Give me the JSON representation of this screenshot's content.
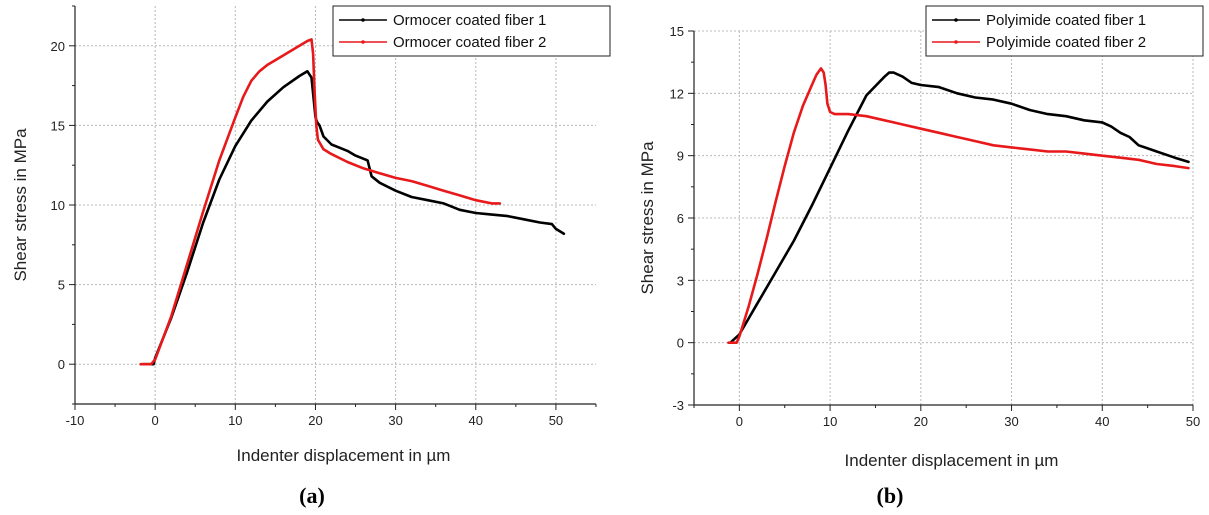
{
  "chart_data": [
    {
      "type": "line",
      "panel_label": "(a)",
      "xlabel": "Indenter displacement in µm",
      "ylabel": "Shear stress in MPa",
      "xlim": [
        -10,
        55
      ],
      "ylim": [
        -2.5,
        22.5
      ],
      "xticks": [
        -10,
        0,
        10,
        20,
        30,
        40,
        50
      ],
      "yticks": [
        0,
        5,
        10,
        15,
        20
      ],
      "grid": true,
      "legend_position": "top-right",
      "series": [
        {
          "name": "Ormocer coated fiber 1",
          "color": "#000000",
          "x": [
            -1.5,
            -0.2,
            0,
            2,
            4,
            6,
            8,
            10,
            12,
            14,
            16,
            18,
            19,
            19.5,
            19.8,
            20.0,
            20.2,
            20.5,
            21,
            22,
            23,
            24,
            25,
            26,
            26.5,
            27,
            28,
            30,
            32,
            34,
            36,
            38,
            40,
            42,
            44,
            46,
            48,
            49.5,
            50,
            51
          ],
          "y": [
            0,
            0,
            0.4,
            2.9,
            5.8,
            8.9,
            11.6,
            13.7,
            15.3,
            16.5,
            17.4,
            18.1,
            18.4,
            18.0,
            16.5,
            15.5,
            15.2,
            15.0,
            14.3,
            13.8,
            13.6,
            13.4,
            13.1,
            12.9,
            12.8,
            11.8,
            11.4,
            10.9,
            10.5,
            10.3,
            10.1,
            9.7,
            9.5,
            9.4,
            9.3,
            9.1,
            8.9,
            8.8,
            8.5,
            8.2
          ]
        },
        {
          "name": "Ormocer coated fiber 2",
          "color": "#e8191b",
          "x": [
            -1.8,
            -0.5,
            0,
            2,
            4,
            6,
            8,
            10,
            11,
            12,
            13,
            14,
            16,
            18,
            19,
            19.5,
            19.7,
            19.9,
            20.1,
            20.3,
            21,
            22,
            24,
            26,
            28,
            30,
            32,
            34,
            36,
            38,
            40,
            41,
            42,
            43
          ],
          "y": [
            0,
            0,
            0.3,
            3.0,
            6.3,
            9.6,
            12.8,
            15.5,
            16.8,
            17.8,
            18.4,
            18.8,
            19.4,
            20.0,
            20.3,
            20.4,
            19.5,
            17.0,
            15.0,
            14.1,
            13.5,
            13.2,
            12.7,
            12.3,
            12.0,
            11.7,
            11.5,
            11.2,
            10.9,
            10.6,
            10.3,
            10.2,
            10.1,
            10.1
          ]
        }
      ]
    },
    {
      "type": "line",
      "panel_label": "(b)",
      "xlabel": "Indenter displacement in µm",
      "ylabel": "Shear stress in MPa",
      "xlim": [
        -5,
        50
      ],
      "ylim": [
        -3,
        15
      ],
      "xticks": [
        0,
        10,
        20,
        30,
        40,
        50
      ],
      "yticks": [
        -3,
        0,
        3,
        6,
        9,
        12,
        15
      ],
      "grid": true,
      "legend_position": "top-right",
      "series": [
        {
          "name": "Polyimide coated fiber 1",
          "color": "#000000",
          "x": [
            -1,
            0,
            2,
            4,
            6,
            8,
            10,
            12,
            14,
            16,
            16.5,
            17,
            18,
            19,
            20,
            22,
            24,
            26,
            28,
            30,
            32,
            34,
            36,
            38,
            40,
            41,
            42,
            43,
            44,
            46,
            48,
            49.5
          ],
          "y": [
            0,
            0.4,
            1.9,
            3.4,
            4.9,
            6.6,
            8.4,
            10.2,
            11.9,
            12.8,
            13.0,
            13.0,
            12.8,
            12.5,
            12.4,
            12.3,
            12.0,
            11.8,
            11.7,
            11.5,
            11.2,
            11.0,
            10.9,
            10.7,
            10.6,
            10.4,
            10.1,
            9.9,
            9.5,
            9.2,
            8.9,
            8.7
          ]
        },
        {
          "name": "Polyimide coated fiber 2",
          "color": "#e8191b",
          "x": [
            -1.2,
            -0.3,
            0,
            1,
            2,
            3,
            4,
            5,
            6,
            7,
            8,
            8.5,
            9,
            9.3,
            9.5,
            9.7,
            10,
            10.5,
            12,
            14,
            16,
            18,
            20,
            22,
            24,
            26,
            28,
            30,
            32,
            34,
            36,
            38,
            40,
            42,
            44,
            46,
            48,
            49.5
          ],
          "y": [
            0,
            0,
            0.3,
            1.7,
            3.3,
            5.0,
            6.8,
            8.5,
            10.1,
            11.4,
            12.4,
            12.9,
            13.2,
            13.0,
            12.4,
            11.5,
            11.1,
            11.0,
            11.0,
            10.9,
            10.7,
            10.5,
            10.3,
            10.1,
            9.9,
            9.7,
            9.5,
            9.4,
            9.3,
            9.2,
            9.2,
            9.1,
            9.0,
            8.9,
            8.8,
            8.6,
            8.5,
            8.4
          ]
        }
      ]
    }
  ]
}
